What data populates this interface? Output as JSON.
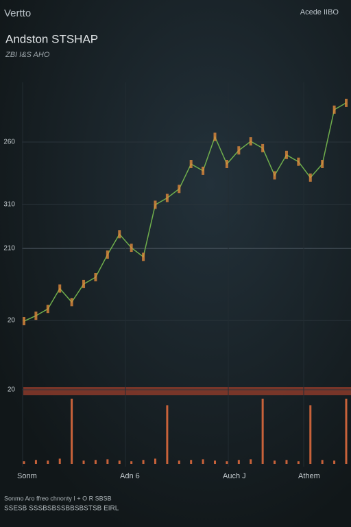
{
  "chart_data": {
    "type": "line",
    "title": "Vertto",
    "corner_label": "Acede IIBO",
    "subtitle": "Andston STSHAP",
    "caption": "ZBI I&S AHO",
    "y_axis_labels": [
      "260",
      "310",
      "210",
      "20",
      "20"
    ],
    "x_axis_labels": [
      "Sonm",
      "Adn 6",
      "Auch J",
      "Athem"
    ],
    "footer": [
      "Sonmo Aro ffreo chnonty I + O R SBSB",
      "SSESB SSSBSBSSBBSBSTSB EIRL"
    ],
    "series": [
      {
        "name": "price",
        "color": "#6fae4c",
        "values": [
          0.6,
          3,
          6,
          15,
          9,
          17,
          20,
          30,
          39,
          33,
          29,
          52,
          55,
          59,
          70,
          67,
          82,
          70,
          76,
          80,
          77,
          65,
          74,
          71,
          64,
          70,
          94,
          97
        ]
      },
      {
        "name": "volume",
        "color": "#c8623a",
        "values": [
          4,
          6,
          5,
          8,
          100,
          5,
          6,
          7,
          5,
          4,
          6,
          8,
          90,
          5,
          6,
          7,
          5,
          4,
          6,
          7,
          100,
          5,
          6,
          4,
          90,
          6,
          5,
          100
        ]
      }
    ],
    "ylim": [
      0,
      100
    ],
    "grid": true
  }
}
